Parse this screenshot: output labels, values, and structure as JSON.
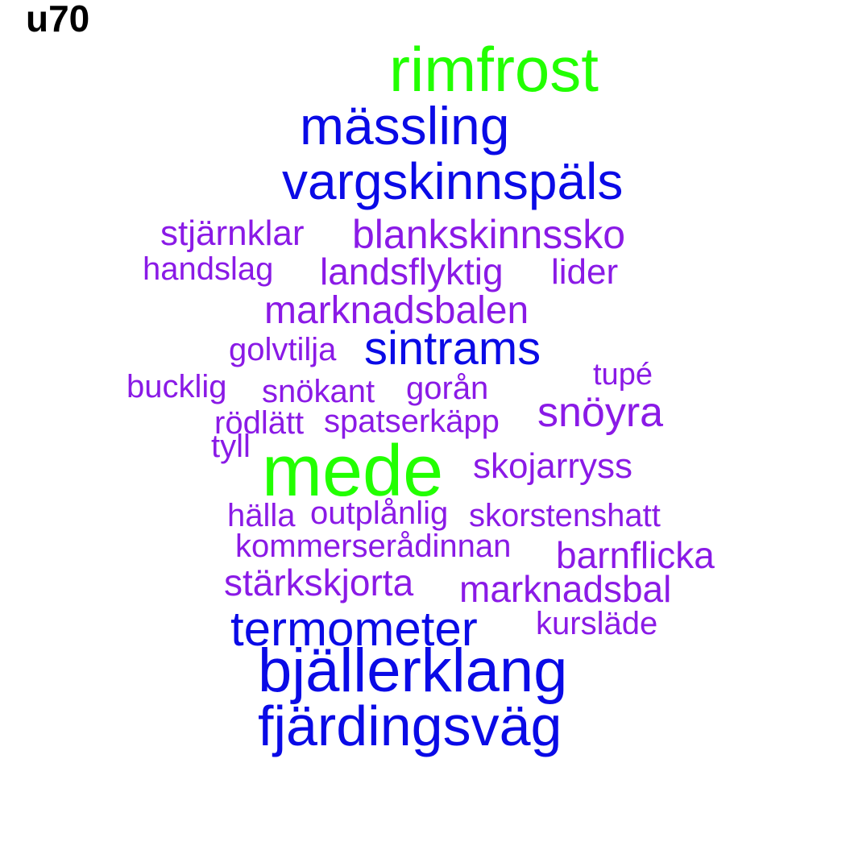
{
  "title": "u70",
  "colors": {
    "green": "#22ff00",
    "blue": "#0a0ae6",
    "purple": "#8a1ae6"
  },
  "words": {
    "rimfrost": "rimfrost",
    "massling": "mässling",
    "vargskinnspals": "vargskinnspäls",
    "stjarnklar": "stjärnklar",
    "blankskinnssko": "blankskinnssko",
    "handslag": "handslag",
    "landsflyktig": "landsflyktig",
    "lider": "lider",
    "marknadsbalen": "marknadsbalen",
    "golvtilja": "golvtilja",
    "sintrams": "sintrams",
    "tupe": "tupé",
    "bucklig": "bucklig",
    "snokant": "snökant",
    "goran": "gorån",
    "snoyra": "snöyra",
    "rodlatt": "rödlätt",
    "spatserkapp": "spatserkäpp",
    "tyll": "tyll",
    "mede": "mede",
    "skojarryss": "skojarryss",
    "halla": "hälla",
    "outplanlig": "outplånlig",
    "skorstenshatt": "skorstenshatt",
    "kommerseradinnan": "kommerserådinnan",
    "barnflicka": "barnflicka",
    "starkskjorta": "stärkskjorta",
    "marknadsbal": "marknadsbal",
    "termometer": "termometer",
    "kurslade": "kursläde",
    "bjallerklang": "bjällerklang",
    "fjardingsvag": "fjärdingsväg"
  }
}
